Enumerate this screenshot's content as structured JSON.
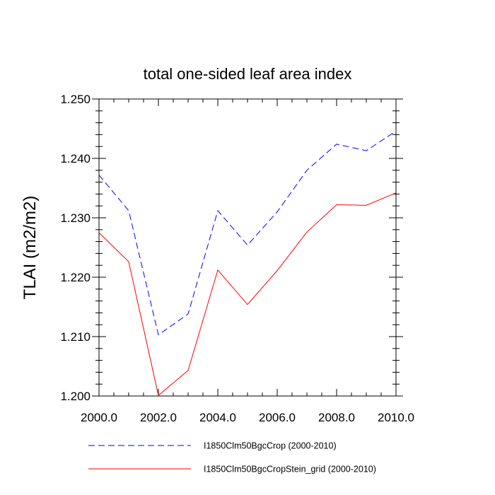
{
  "chart_data": {
    "type": "line",
    "title": "total one-sided leaf area index",
    "xlabel": "",
    "ylabel": "TLAI  (m2/m2)",
    "xlim": [
      2000,
      2010
    ],
    "ylim": [
      1.2,
      1.25
    ],
    "x_ticks": [
      2000,
      2002,
      2004,
      2006,
      2008,
      2010
    ],
    "x_tick_labels": [
      "2000.0",
      "2002.0",
      "2004.0",
      "2006.0",
      "2008.0",
      "2010.0"
    ],
    "y_ticks": [
      1.2,
      1.21,
      1.22,
      1.23,
      1.24,
      1.25
    ],
    "y_tick_labels": [
      "1.200",
      "1.210",
      "1.220",
      "1.230",
      "1.240",
      "1.250"
    ],
    "grid": false,
    "legend_placement": "bottom",
    "x": [
      2000,
      2001,
      2002,
      2003,
      2004,
      2005,
      2006,
      2007,
      2008,
      2009,
      2010
    ],
    "series": [
      {
        "name": "I1850Clm50BgcCrop (2000-2010)",
        "color": "#0000ff",
        "style": "dashed",
        "values": [
          1.2372,
          1.2312,
          1.2103,
          1.2138,
          1.2312,
          1.2254,
          1.231,
          1.238,
          1.2424,
          1.2413,
          1.2446
        ]
      },
      {
        "name": "I1850Clm50BgcCropStein_grid (2000-2010)",
        "color": "#ff0000",
        "style": "solid",
        "values": [
          1.2275,
          1.2226,
          1.2001,
          1.2043,
          1.2212,
          1.2154,
          1.2211,
          1.2276,
          1.2322,
          1.2321,
          1.2342
        ]
      }
    ]
  }
}
